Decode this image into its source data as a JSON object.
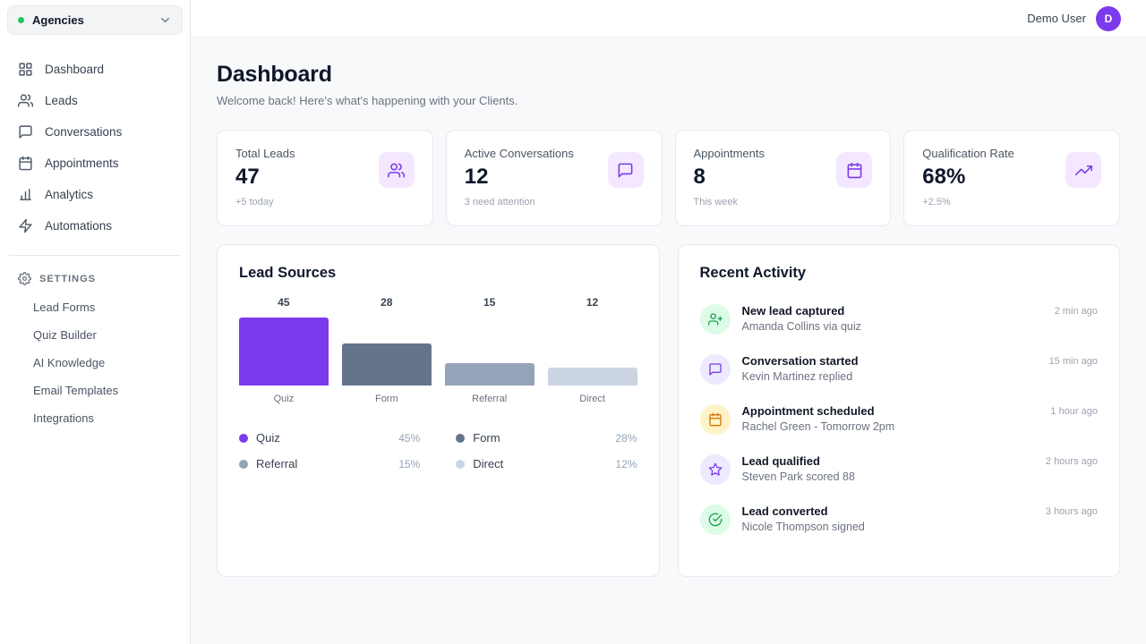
{
  "topbar": {
    "user_name": "Demo User",
    "avatar_initial": "D"
  },
  "sidebar": {
    "org_selector": {
      "label": "Agencies"
    },
    "nav": [
      {
        "label": "Dashboard"
      },
      {
        "label": "Leads"
      },
      {
        "label": "Conversations"
      },
      {
        "label": "Appointments"
      },
      {
        "label": "Analytics"
      },
      {
        "label": "Automations"
      }
    ],
    "settings_label": "Settings",
    "settings_items": [
      {
        "label": "Lead Forms"
      },
      {
        "label": "Quiz Builder"
      },
      {
        "label": "AI Knowledge"
      },
      {
        "label": "Email Templates"
      },
      {
        "label": "Integrations"
      }
    ]
  },
  "header": {
    "title": "Dashboard",
    "subtitle": "Welcome back! Here's what's happening with your Clients."
  },
  "stats": [
    {
      "label": "Total Leads",
      "value": "47",
      "sub": "+5 today",
      "icon": "users-icon"
    },
    {
      "label": "Active Conversations",
      "value": "12",
      "sub": "3 need attention",
      "icon": "chat-icon"
    },
    {
      "label": "Appointments",
      "value": "8",
      "sub": "This week",
      "icon": "calendar-icon"
    },
    {
      "label": "Qualification Rate",
      "value": "68%",
      "sub": "+2.5%",
      "icon": "trending-up-icon"
    }
  ],
  "chart_data": {
    "type": "bar",
    "title": "Lead Sources",
    "categories": [
      "Quiz",
      "Form",
      "Referral",
      "Direct"
    ],
    "values": [
      45,
      28,
      15,
      12
    ],
    "percentages": [
      "45%",
      "28%",
      "15%",
      "12%"
    ],
    "colors": [
      "#7c3aed",
      "#64748b",
      "#94a3b8",
      "#cbd5e1"
    ],
    "ylim": [
      0,
      45
    ],
    "legend_position": "below",
    "grid": false
  },
  "activity": {
    "title": "Recent Activity",
    "items": [
      {
        "title": "New lead captured",
        "subtitle": "Amanda Collins via quiz",
        "time": "2 min ago",
        "icon": "user-plus-icon",
        "tint": "green"
      },
      {
        "title": "Conversation started",
        "subtitle": "Kevin Martinez replied",
        "time": "15 min ago",
        "icon": "chat-icon",
        "tint": "purple"
      },
      {
        "title": "Appointment scheduled",
        "subtitle": "Rachel Green - Tomorrow 2pm",
        "time": "1 hour ago",
        "icon": "calendar-icon",
        "tint": "amber"
      },
      {
        "title": "Lead qualified",
        "subtitle": "Steven Park scored 88",
        "time": "2 hours ago",
        "icon": "star-icon",
        "tint": "purple"
      },
      {
        "title": "Lead converted",
        "subtitle": "Nicole Thompson signed",
        "time": "3 hours ago",
        "icon": "check-circle-icon",
        "tint": "green"
      }
    ]
  }
}
